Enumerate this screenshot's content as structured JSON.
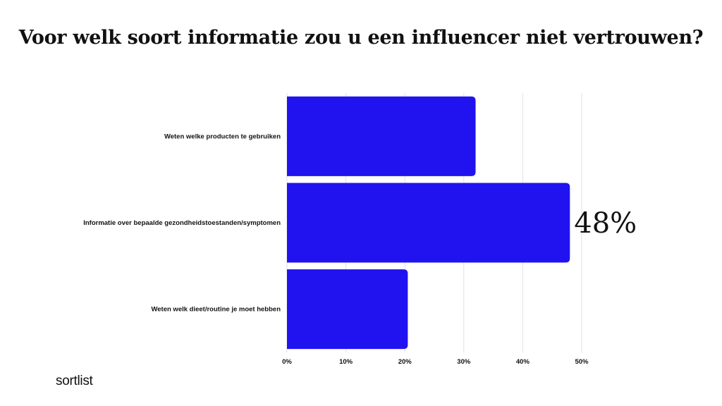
{
  "page": {
    "brand": "sortlist"
  },
  "chart_data": {
    "type": "bar",
    "orientation": "horizontal",
    "title": "Voor welk soort informatie zou u een influencer niet vertrouwen?",
    "categories": [
      "Weten welke producten te gebruiken",
      "Informatie over bepaalde gezondheidstoestanden/symptomen",
      "Weten welk dieet/routine je moet hebben"
    ],
    "values": [
      32,
      48,
      20.5
    ],
    "unit": "%",
    "xlim": [
      0,
      50
    ],
    "xticks": [
      0,
      10,
      20,
      30,
      40,
      50
    ],
    "xtick_labels": [
      "0%",
      "10%",
      "20%",
      "30%",
      "40%",
      "50%"
    ],
    "data_labels": [
      {
        "category_index": 1,
        "text": "48%"
      }
    ],
    "grid": true,
    "legend": "none",
    "colors": {
      "bar": "#2113f0",
      "grid": "#e2e2e2",
      "text": "#111111"
    }
  }
}
